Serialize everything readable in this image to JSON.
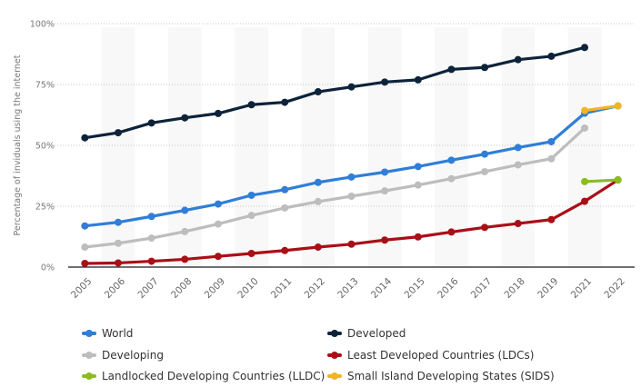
{
  "chart_data": {
    "type": "line",
    "title": "",
    "xlabel": "",
    "ylabel": "Percentage of inviduals using the internet",
    "categories": [
      "2005",
      "2006",
      "2007",
      "2008",
      "2009",
      "2010",
      "2011",
      "2012",
      "2013",
      "2014",
      "2015",
      "2016",
      "2017",
      "2018",
      "2019",
      "2021",
      "2022"
    ],
    "ylim": [
      0,
      100
    ],
    "yticks": [
      0,
      25,
      50,
      75,
      100
    ],
    "ytick_labels": [
      "0%",
      "25%",
      "50%",
      "75%",
      "100%"
    ],
    "grid": true,
    "alternating_column_bands": true,
    "legend_position": "bottom",
    "series": [
      {
        "name": "World",
        "color": "#2f7ed8",
        "values": [
          16.9,
          18.4,
          20.8,
          23.3,
          25.9,
          29.5,
          31.8,
          34.8,
          37.0,
          39.0,
          41.3,
          43.9,
          46.4,
          49.1,
          51.5,
          63.2,
          66.2
        ]
      },
      {
        "name": "Developed",
        "color": "#0d233a",
        "values": [
          53.1,
          55.2,
          59.2,
          61.3,
          63.1,
          66.7,
          67.7,
          72.0,
          74.0,
          76.0,
          76.9,
          81.2,
          82.0,
          85.2,
          86.6,
          90.2,
          null
        ]
      },
      {
        "name": "Developing",
        "color": "#bdbdbd",
        "values": [
          8.2,
          9.8,
          11.9,
          14.6,
          17.7,
          21.2,
          24.3,
          26.9,
          29.1,
          31.3,
          33.7,
          36.3,
          39.2,
          42.0,
          44.5,
          57.1,
          null
        ]
      },
      {
        "name": "Least Developed Countries (LDCs)",
        "color": "#a90f17",
        "values": [
          1.5,
          1.7,
          2.4,
          3.2,
          4.4,
          5.6,
          6.8,
          8.2,
          9.4,
          11.1,
          12.4,
          14.4,
          16.3,
          17.9,
          19.5,
          27.0,
          35.8
        ]
      },
      {
        "name": "Landlocked Developing Countries (LLDC)",
        "color": "#8bbc21",
        "values": [
          null,
          null,
          null,
          null,
          null,
          null,
          null,
          null,
          null,
          null,
          null,
          null,
          null,
          null,
          null,
          35.1,
          35.8
        ]
      },
      {
        "name": "Small Island Developing States (SIDS)",
        "color": "#f1b521",
        "values": [
          null,
          null,
          null,
          null,
          null,
          null,
          null,
          null,
          null,
          null,
          null,
          null,
          null,
          null,
          null,
          64.3,
          66.2
        ]
      }
    ]
  }
}
